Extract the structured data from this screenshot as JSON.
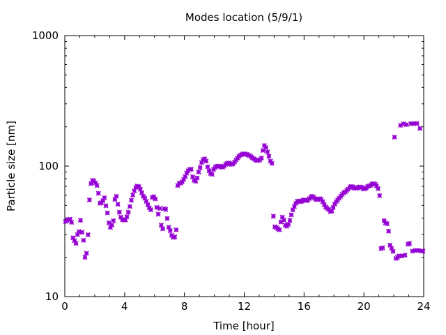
{
  "chart_data": {
    "type": "scatter",
    "title": "Modes location (5/9/1)",
    "xlabel": "Time [hour]",
    "ylabel": "Particle size [nm]",
    "xlim": [
      0,
      24
    ],
    "ylim": [
      10,
      1000
    ],
    "yscale": "log",
    "grid": false,
    "legend": "none",
    "marker_color": "#9400d3",
    "xticks": [
      0,
      4,
      8,
      12,
      16,
      20,
      24
    ],
    "xtick_labels": [
      "0",
      "4",
      "8",
      "12",
      "16",
      "20",
      "24"
    ],
    "yticks": [
      10,
      100,
      1000
    ],
    "ytick_labels": [
      "10",
      "100",
      "1000"
    ],
    "series": [
      {
        "points": [
          [
            0.05,
            37.6
          ],
          [
            0.15,
            38.4
          ],
          [
            0.25,
            38.9
          ],
          [
            0.35,
            39.2
          ],
          [
            0.45,
            37.1
          ],
          [
            0.55,
            28.2
          ],
          [
            0.65,
            26.8
          ],
          [
            0.75,
            25.6
          ],
          [
            0.85,
            29.9
          ],
          [
            0.95,
            31.5
          ],
          [
            1.05,
            38.4
          ],
          [
            1.15,
            31.1
          ],
          [
            1.25,
            27.0
          ],
          [
            1.35,
            20.0
          ],
          [
            1.45,
            21.5
          ],
          [
            1.55,
            29.8
          ],
          [
            1.65,
            55.1
          ],
          [
            1.75,
            73.5
          ],
          [
            1.85,
            77.8
          ],
          [
            1.95,
            76.6
          ],
          [
            2.05,
            74.4
          ],
          [
            2.15,
            71.0
          ],
          [
            2.25,
            61.9
          ],
          [
            2.35,
            51.9
          ],
          [
            2.45,
            52.5
          ],
          [
            2.55,
            54.4
          ],
          [
            2.65,
            57.2
          ],
          [
            2.75,
            49.7
          ],
          [
            2.85,
            43.8
          ],
          [
            2.95,
            36.8
          ],
          [
            3.05,
            33.9
          ],
          [
            3.15,
            35.3
          ],
          [
            3.25,
            38.2
          ],
          [
            3.35,
            55.6
          ],
          [
            3.45,
            58.7
          ],
          [
            3.55,
            51.0
          ],
          [
            3.65,
            44.3
          ],
          [
            3.75,
            40.6
          ],
          [
            3.85,
            38.9
          ],
          [
            3.95,
            38.6
          ],
          [
            4.05,
            38.6
          ],
          [
            4.15,
            40.9
          ],
          [
            4.25,
            44.3
          ],
          [
            4.35,
            49.1
          ],
          [
            4.45,
            54.7
          ],
          [
            4.55,
            59.9
          ],
          [
            4.65,
            64.6
          ],
          [
            4.75,
            68.8
          ],
          [
            4.85,
            70.3
          ],
          [
            4.95,
            69.6
          ],
          [
            5.05,
            66.6
          ],
          [
            5.15,
            62.4
          ],
          [
            5.25,
            58.7
          ],
          [
            5.35,
            56.7
          ],
          [
            5.45,
            53.7
          ],
          [
            5.55,
            50.5
          ],
          [
            5.65,
            47.9
          ],
          [
            5.75,
            46.2
          ],
          [
            5.85,
            57.5
          ],
          [
            5.95,
            58.3
          ],
          [
            6.05,
            56.0
          ],
          [
            6.15,
            48.2
          ],
          [
            6.25,
            42.8
          ],
          [
            6.35,
            47.4
          ],
          [
            6.45,
            35.3
          ],
          [
            6.55,
            33.1
          ],
          [
            6.65,
            47.2
          ],
          [
            6.75,
            46.6
          ],
          [
            6.85,
            39.7
          ],
          [
            6.95,
            34.0
          ],
          [
            7.05,
            32.0
          ],
          [
            7.15,
            29.5
          ],
          [
            7.25,
            28.4
          ],
          [
            7.35,
            28.7
          ],
          [
            7.45,
            32.5
          ],
          [
            7.55,
            71.0
          ],
          [
            7.65,
            73.8
          ],
          [
            7.75,
            74.1
          ],
          [
            7.85,
            75.8
          ],
          [
            7.95,
            78.9
          ],
          [
            8.05,
            83.1
          ],
          [
            8.15,
            88.6
          ],
          [
            8.25,
            92.1
          ],
          [
            8.35,
            94.4
          ],
          [
            8.45,
            94.8
          ],
          [
            8.55,
            82.8
          ],
          [
            8.65,
            77.8
          ],
          [
            8.75,
            76.6
          ],
          [
            8.85,
            81.1
          ],
          [
            8.95,
            90.1
          ],
          [
            9.05,
            97.5
          ],
          [
            9.15,
            106.5
          ],
          [
            9.25,
            112.0
          ],
          [
            9.35,
            113.6
          ],
          [
            9.45,
            109.2
          ],
          [
            9.55,
            98.8
          ],
          [
            9.65,
            92.1
          ],
          [
            9.75,
            87.7
          ],
          [
            9.85,
            86.5
          ],
          [
            9.95,
            94.4
          ],
          [
            10.05,
            97.5
          ],
          [
            10.15,
            99.8
          ],
          [
            10.25,
            99.4
          ],
          [
            10.35,
            100.0
          ],
          [
            10.45,
            98.5
          ],
          [
            10.55,
            98.1
          ],
          [
            10.65,
            99.8
          ],
          [
            10.75,
            102.9
          ],
          [
            10.85,
            104.5
          ],
          [
            10.95,
            105.8
          ],
          [
            11.05,
            104.1
          ],
          [
            11.15,
            102.9
          ],
          [
            11.25,
            104.1
          ],
          [
            11.35,
            107.3
          ],
          [
            11.45,
            111.1
          ],
          [
            11.55,
            115.3
          ],
          [
            11.65,
            118.6
          ],
          [
            11.75,
            121.3
          ],
          [
            11.85,
            123.0
          ],
          [
            11.95,
            124.2
          ],
          [
            12.05,
            124.2
          ],
          [
            12.15,
            123.0
          ],
          [
            12.25,
            121.8
          ],
          [
            12.35,
            120.4
          ],
          [
            12.45,
            118.1
          ],
          [
            12.55,
            115.8
          ],
          [
            12.65,
            113.6
          ],
          [
            12.75,
            111.6
          ],
          [
            12.85,
            110.2
          ],
          [
            12.95,
            110.6
          ],
          [
            13.05,
            112.0
          ],
          [
            13.15,
            115.3
          ],
          [
            13.25,
            131.9
          ],
          [
            13.35,
            143.7
          ],
          [
            13.45,
            138.4
          ],
          [
            13.55,
            128.4
          ],
          [
            13.65,
            119.0
          ],
          [
            13.75,
            109.2
          ],
          [
            13.85,
            104.9
          ],
          [
            13.95,
            41.3
          ],
          [
            14.05,
            34.3
          ],
          [
            14.15,
            33.8
          ],
          [
            14.25,
            33.1
          ],
          [
            14.35,
            32.5
          ],
          [
            14.45,
            37.3
          ],
          [
            14.55,
            40.6
          ],
          [
            14.65,
            38.6
          ],
          [
            14.75,
            35.3
          ],
          [
            14.85,
            34.6
          ],
          [
            14.95,
            35.8
          ],
          [
            15.05,
            38.4
          ],
          [
            15.15,
            42.3
          ],
          [
            15.25,
            46.2
          ],
          [
            15.35,
            49.1
          ],
          [
            15.45,
            51.7
          ],
          [
            15.55,
            53.7
          ],
          [
            15.65,
            54.1
          ],
          [
            15.75,
            53.3
          ],
          [
            15.85,
            53.9
          ],
          [
            15.95,
            54.9
          ],
          [
            16.05,
            55.1
          ],
          [
            16.15,
            54.4
          ],
          [
            16.25,
            54.7
          ],
          [
            16.35,
            56.4
          ],
          [
            16.45,
            57.9
          ],
          [
            16.55,
            58.7
          ],
          [
            16.65,
            57.5
          ],
          [
            16.75,
            56.0
          ],
          [
            16.85,
            55.3
          ],
          [
            16.95,
            56.0
          ],
          [
            17.05,
            56.2
          ],
          [
            17.15,
            55.6
          ],
          [
            17.25,
            53.3
          ],
          [
            17.35,
            50.7
          ],
          [
            17.45,
            48.6
          ],
          [
            17.55,
            47.4
          ],
          [
            17.65,
            46.4
          ],
          [
            17.75,
            44.8
          ],
          [
            17.85,
            45.3
          ],
          [
            17.95,
            48.2
          ],
          [
            18.05,
            51.2
          ],
          [
            18.15,
            53.5
          ],
          [
            18.25,
            55.1
          ],
          [
            18.35,
            56.8
          ],
          [
            18.45,
            58.7
          ],
          [
            18.55,
            60.7
          ],
          [
            18.65,
            62.4
          ],
          [
            18.75,
            63.5
          ],
          [
            18.85,
            65.0
          ],
          [
            18.95,
            66.6
          ],
          [
            19.05,
            68.6
          ],
          [
            19.15,
            69.9
          ],
          [
            19.25,
            69.3
          ],
          [
            19.35,
            68.0
          ],
          [
            19.45,
            67.6
          ],
          [
            19.55,
            68.0
          ],
          [
            19.65,
            68.8
          ],
          [
            19.75,
            69.3
          ],
          [
            19.85,
            68.6
          ],
          [
            19.95,
            67.2
          ],
          [
            20.05,
            66.8
          ],
          [
            20.15,
            68.0
          ],
          [
            20.25,
            69.6
          ],
          [
            20.35,
            70.5
          ],
          [
            20.45,
            71.3
          ],
          [
            20.55,
            72.9
          ],
          [
            20.65,
            73.4
          ],
          [
            20.75,
            72.6
          ],
          [
            20.85,
            70.7
          ],
          [
            20.95,
            67.2
          ],
          [
            21.05,
            59.4
          ],
          [
            21.15,
            23.3
          ],
          [
            21.25,
            23.7
          ],
          [
            21.35,
            38.2
          ],
          [
            21.45,
            36.8
          ],
          [
            21.55,
            36.1
          ],
          [
            21.65,
            31.7
          ],
          [
            21.75,
            24.8
          ],
          [
            21.85,
            23.4
          ],
          [
            21.95,
            22.2
          ],
          [
            22.05,
            166.8
          ],
          [
            22.15,
            19.6
          ],
          [
            22.25,
            20.0
          ],
          [
            22.35,
            20.5
          ],
          [
            22.45,
            205.3
          ],
          [
            22.55,
            20.5
          ],
          [
            22.65,
            210.8
          ],
          [
            22.75,
            20.8
          ],
          [
            22.85,
            207.6
          ],
          [
            22.95,
            25.2
          ],
          [
            23.05,
            25.6
          ],
          [
            23.15,
            211.6
          ],
          [
            23.25,
            22.3
          ],
          [
            23.35,
            211.6
          ],
          [
            23.45,
            22.6
          ],
          [
            23.55,
            212.3
          ],
          [
            23.65,
            22.6
          ],
          [
            23.75,
            194.7
          ],
          [
            23.85,
            22.3
          ],
          [
            23.95,
            22.3
          ]
        ]
      }
    ]
  }
}
